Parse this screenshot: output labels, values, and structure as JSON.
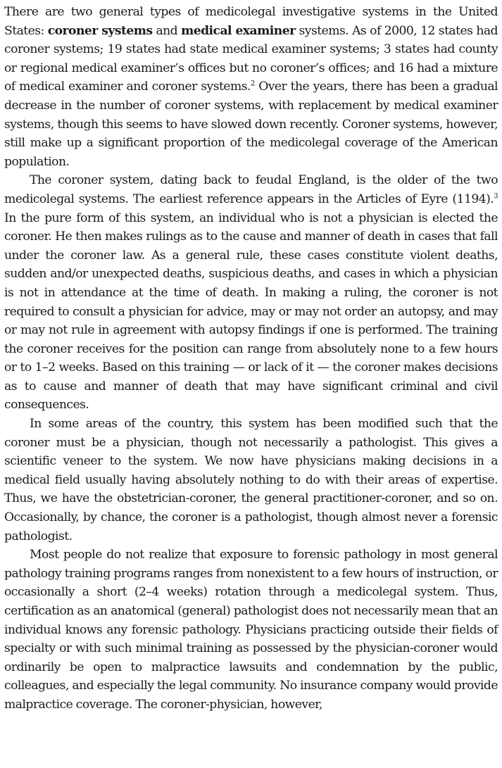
{
  "paragraphs": [
    {
      "indent": false,
      "segments": [
        {
          "text": "There are two general types of medicolegal investigative systems in the United States: ",
          "style": "normal"
        },
        {
          "text": "coroner systems",
          "style": "bold"
        },
        {
          "text": " and ",
          "style": "normal"
        },
        {
          "text": "medical examiner",
          "style": "bold"
        },
        {
          "text": " systems. As of 2000, 12 states had coroner systems; 19 states had state medical examiner systems; 3 states had county or regional medical examiner’s offices but no coroner’s offices; and 16 had a mixture of medical examiner and coroner systems.",
          "style": "normal"
        },
        {
          "text": "2",
          "style": "sup"
        },
        {
          "text": " Over the years, there has been a gradual decrease in the number of coroner systems, with replacement by medical examiner systems, though this seems to have slowed down recently. Coroner systems, however, still make up a significant proportion of the medicolegal coverage of the American population.",
          "style": "normal"
        }
      ]
    },
    {
      "indent": true,
      "segments": [
        {
          "text": "The coroner system, dating back to feudal England, is the older of the two medicolegal systems. The earliest reference appears in the Articles of Eyre (1194).",
          "style": "normal"
        },
        {
          "text": "3",
          "style": "sup"
        },
        {
          "text": " In the pure form of this system, an individual who is not a physician is elected the coroner. He then makes rulings as to the cause and manner of death in cases that fall under the coroner law. As a general rule, these cases constitute violent deaths, sudden and/or unexpected deaths, suspicious deaths, and cases in which a physician is not in attendance at the time of death. In making a ruling, the coroner is not required to consult a physician for advice, may or may not order an autopsy, and may or may not rule in agreement with autopsy findings if one is performed. The training the cor­oner receives for the position can range from absolutely none to a few hours or to 1–2 weeks. Based on this training — or lack of it — the coroner makes decisions as to cause and manner of death that may have significant criminal and civil consequences.",
          "style": "normal"
        }
      ]
    },
    {
      "indent": true,
      "segments": [
        {
          "text": "In some areas of the country, this system has been modified such that the coroner must be a physician, though not necessarily a pathologist. This gives a scientific veneer to the system. We now have physicians making decisions in a medical field usually having absolutely nothing to do with their areas of expertise. Thus, we have the obstetrician-coroner, the general prac­titioner-coroner, and so on. Occasionally, by chance, the coroner is a pathol­ogist, though almost never a forensic pathologist.",
          "style": "normal"
        }
      ]
    },
    {
      "indent": true,
      "segments": [
        {
          "text": "Most people do not realize that exposure to forensic pathology in most general pathology training programs ranges from nonexistent to a few hours of instruction, or occasionally a short (2–4 weeks) rotation through a medicolegal system. Thus, certification as an anatomical (general) pathol­ogist does not necessarily mean that an individual knows any forensic pathology. Physicians practicing outside their fields of specialty or with such minimal training as possessed by the physician-coroner would ordi­narily be open to malpractice lawsuits and condemnation by the public, colleagues, and especially the legal community. No insurance company would provide malpractice coverage. The coroner-physician, however,",
          "style": "normal"
        }
      ]
    }
  ]
}
